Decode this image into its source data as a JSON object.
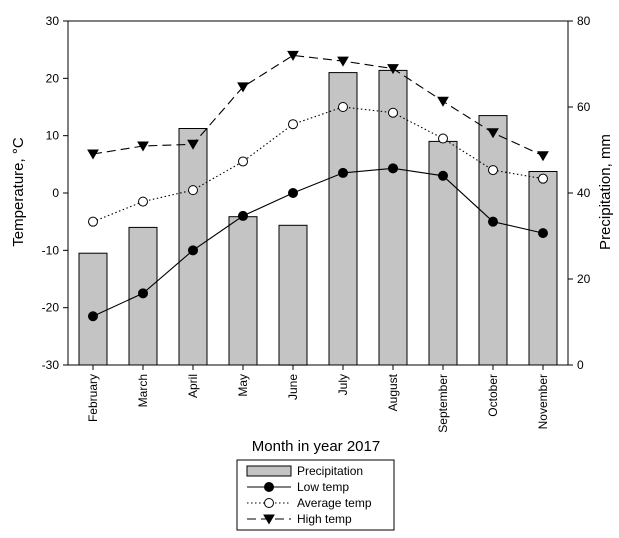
{
  "chart_data": {
    "type": "bar+line",
    "categories": [
      "February",
      "March",
      "April",
      "May",
      "June",
      "July",
      "August",
      "September",
      "October",
      "November"
    ],
    "xlabel": "Month in year 2017",
    "ylabel_left": "Temperature, °C",
    "ylabel_right": "Precipitation, mm",
    "ylim_left": [
      -30,
      30
    ],
    "ylim_right": [
      0,
      80
    ],
    "yticks_left": [
      -30,
      -20,
      -10,
      0,
      10,
      20,
      30
    ],
    "yticks_right": [
      0,
      20,
      40,
      60,
      80
    ],
    "grid": false,
    "legend_position": "bottom-center",
    "bars": {
      "name": "Precipitation",
      "axis": "right",
      "values": [
        26,
        32,
        55,
        34.5,
        32.5,
        68,
        68.5,
        52,
        58,
        45
      ],
      "color": "#c4c4c4"
    },
    "series": [
      {
        "name": "Low temp",
        "axis": "left",
        "values": [
          -21.5,
          -17.5,
          -10,
          -4,
          0,
          3.5,
          4.3,
          3,
          -5,
          -7
        ],
        "marker": "filled-circle",
        "line": "solid"
      },
      {
        "name": "Average temp",
        "axis": "left",
        "values": [
          -5,
          -1.5,
          0.5,
          5.5,
          12,
          15,
          14,
          9.5,
          4,
          2.5
        ],
        "marker": "open-circle",
        "line": "dotted"
      },
      {
        "name": "High temp",
        "axis": "left",
        "values": [
          6.8,
          8.2,
          8.5,
          18.5,
          24,
          23,
          21.7,
          16,
          10.5,
          6.5
        ],
        "marker": "filled-triangle-down",
        "line": "dashed"
      }
    ]
  }
}
